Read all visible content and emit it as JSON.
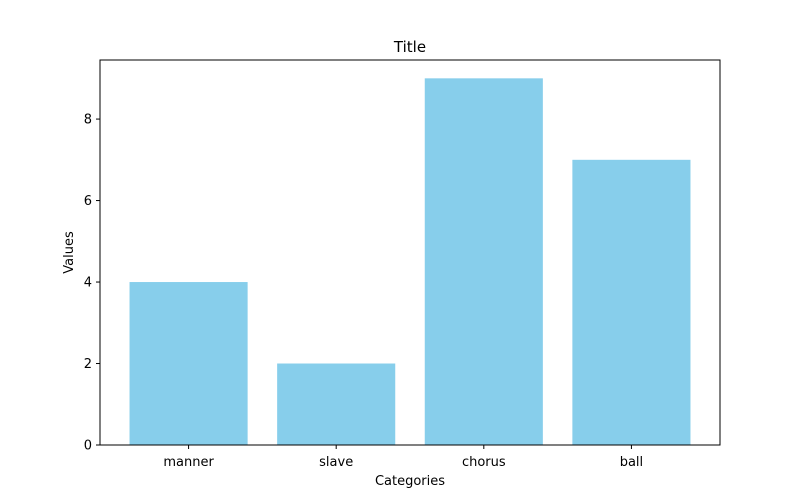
{
  "chart_data": {
    "type": "bar",
    "title": "Title",
    "xlabel": "Categories",
    "ylabel": "Values",
    "categories": [
      "manner",
      "slave",
      "chorus",
      "ball"
    ],
    "values": [
      4,
      2,
      9,
      7
    ],
    "ylim": [
      0,
      9.45
    ],
    "yticks": [
      0,
      2,
      4,
      6,
      8
    ],
    "bar_color": "#87CEEB",
    "grid": false,
    "legend": "none"
  }
}
